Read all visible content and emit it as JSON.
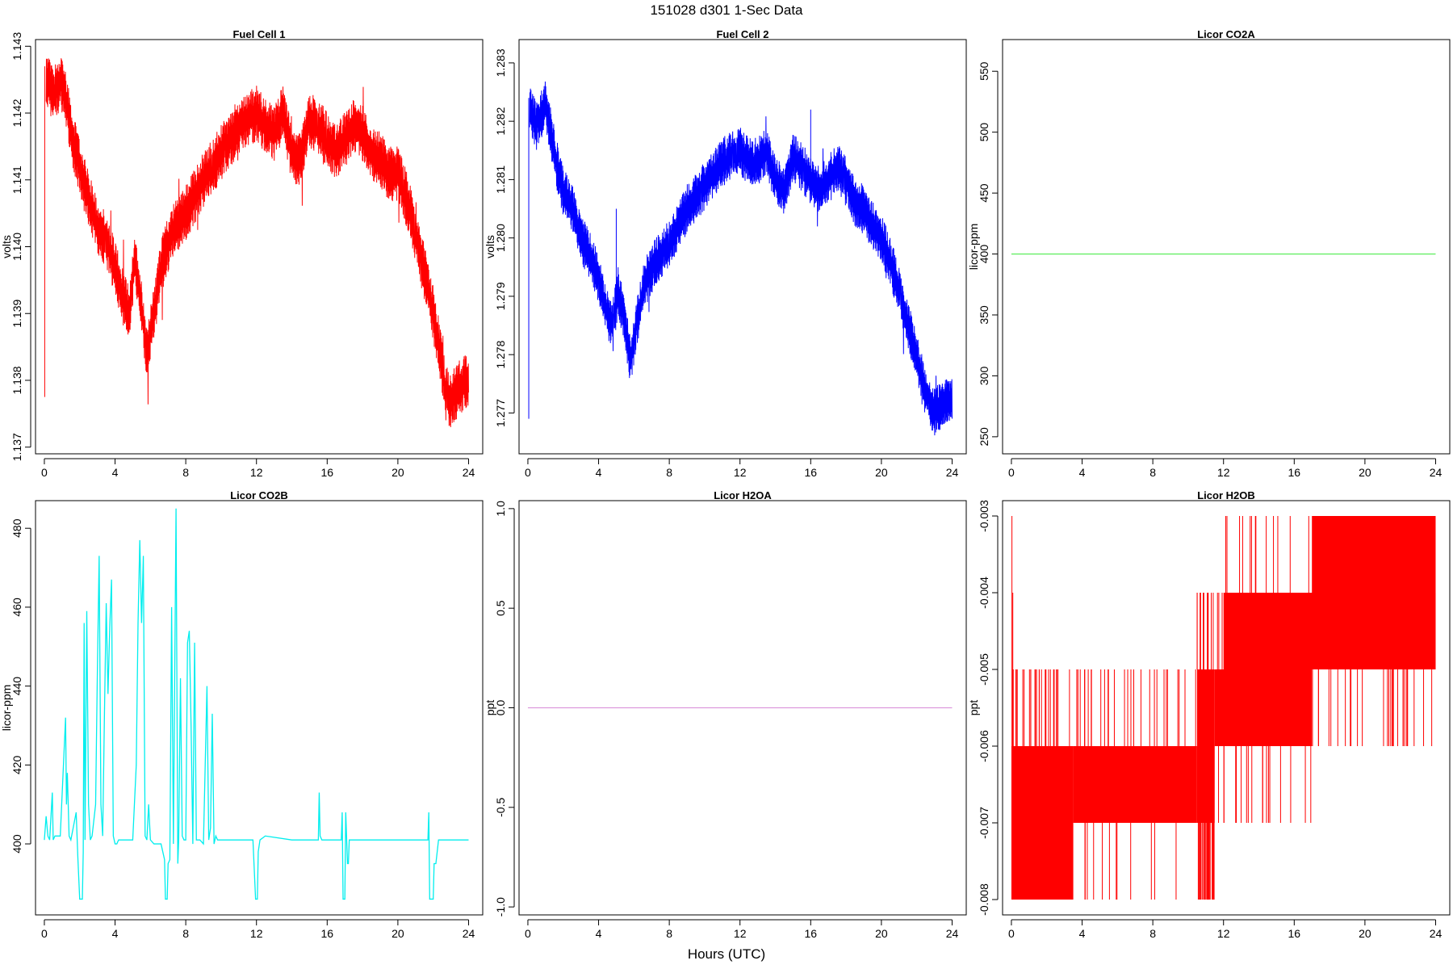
{
  "figure": {
    "title": "151028   d301   1-Sec Data",
    "xlabel": "Hours (UTC)"
  },
  "chart_data": [
    {
      "type": "line",
      "title": "Fuel Cell 1",
      "ylabel": "volts",
      "color": "#ff0000",
      "xlim": [
        -0.5,
        24.8
      ],
      "ylim": [
        1.1369,
        1.1431
      ],
      "xticks": [
        0,
        4,
        8,
        12,
        16,
        20,
        24
      ],
      "yticks": [
        "1.137",
        "1.138",
        "1.139",
        "1.140",
        "1.141",
        "1.142",
        "1.143"
      ],
      "noise": 0.00042,
      "spikes": [
        [
          0.02,
          1.13775,
          1.1427
        ]
      ],
      "x": [
        0.1,
        0.5,
        1.0,
        1.3,
        1.6,
        2.0,
        2.5,
        3.0,
        3.5,
        4.0,
        4.5,
        4.8,
        5.1,
        5.4,
        5.8,
        6.2,
        6.6,
        7.2,
        8.0,
        9.0,
        10.0,
        11.0,
        11.5,
        12.0,
        12.5,
        13.0,
        13.5,
        14.0,
        14.5,
        15.0,
        15.5,
        16.0,
        16.5,
        17.0,
        17.5,
        18.0,
        18.5,
        19.0,
        19.5,
        20.0,
        20.5,
        21.0,
        21.5,
        22.0,
        22.4,
        22.7,
        23.0,
        23.5,
        24.0
      ],
      "values": [
        1.1425,
        1.1423,
        1.1425,
        1.1421,
        1.1416,
        1.1412,
        1.1407,
        1.1403,
        1.1401,
        1.1397,
        1.1392,
        1.139,
        1.1398,
        1.1393,
        1.1384,
        1.139,
        1.1397,
        1.1402,
        1.1405,
        1.141,
        1.1414,
        1.1418,
        1.1419,
        1.142,
        1.1418,
        1.1417,
        1.142,
        1.1414,
        1.1413,
        1.1419,
        1.1418,
        1.1416,
        1.1414,
        1.1416,
        1.1418,
        1.1417,
        1.1414,
        1.1413,
        1.1411,
        1.1411,
        1.1407,
        1.1402,
        1.1396,
        1.139,
        1.1384,
        1.1378,
        1.1377,
        1.1379,
        1.138
      ]
    },
    {
      "type": "line",
      "title": "Fuel Cell 2",
      "ylabel": "volts",
      "color": "#0000ff",
      "xlim": [
        -0.5,
        24.8
      ],
      "ylim": [
        1.2763,
        1.2834
      ],
      "xticks": [
        0,
        4,
        8,
        12,
        16,
        20,
        24
      ],
      "yticks": [
        "1.277",
        "1.278",
        "1.279",
        "1.280",
        "1.281",
        "1.282",
        "1.283"
      ],
      "noise": 0.00042,
      "spikes": [
        [
          0.05,
          1.2769,
          1.2824
        ],
        [
          5.0,
          1.2791,
          1.2805
        ],
        [
          16.0,
          1.2809,
          1.2822
        ]
      ],
      "x": [
        0.1,
        0.5,
        1.0,
        1.3,
        1.6,
        2.0,
        2.5,
        3.0,
        3.5,
        4.0,
        4.5,
        4.8,
        5.1,
        5.4,
        5.8,
        6.2,
        6.6,
        7.2,
        8.0,
        9.0,
        10.0,
        11.0,
        11.5,
        12.0,
        12.5,
        13.0,
        13.5,
        14.0,
        14.5,
        15.0,
        15.5,
        16.0,
        16.5,
        17.0,
        17.5,
        18.0,
        18.5,
        19.0,
        19.5,
        20.0,
        20.5,
        21.0,
        21.5,
        22.0,
        22.4,
        22.7,
        23.0,
        23.5,
        24.0
      ],
      "values": [
        1.2822,
        1.2819,
        1.2823,
        1.2818,
        1.2813,
        1.2808,
        1.2805,
        1.28,
        1.2797,
        1.2793,
        1.2787,
        1.2785,
        1.2791,
        1.2787,
        1.2779,
        1.2786,
        1.2792,
        1.2796,
        1.2799,
        1.2805,
        1.2809,
        1.2813,
        1.2814,
        1.2815,
        1.2813,
        1.2813,
        1.2815,
        1.281,
        1.2808,
        1.2814,
        1.2812,
        1.281,
        1.2808,
        1.281,
        1.2812,
        1.281,
        1.2806,
        1.2805,
        1.2802,
        1.28,
        1.2796,
        1.2791,
        1.2785,
        1.278,
        1.2774,
        1.2772,
        1.277,
        1.2772,
        1.2772
      ]
    },
    {
      "type": "line",
      "title": "Licor CO2A",
      "ylabel": "licor-ppm",
      "color": "#66ee66",
      "xlim": [
        -0.5,
        24.8
      ],
      "ylim": [
        236,
        576
      ],
      "xticks": [
        0,
        4,
        8,
        12,
        16,
        20,
        24
      ],
      "yticks": [
        "250",
        "300",
        "350",
        "400",
        "450",
        "500",
        "550"
      ],
      "noise": 0,
      "x": [
        0,
        24
      ],
      "values": [
        400,
        400
      ]
    },
    {
      "type": "line",
      "title": "Licor CO2B",
      "ylabel": "licor-ppm",
      "color": "#00eeee",
      "xlim": [
        -0.5,
        24.8
      ],
      "ylim": [
        382,
        487
      ],
      "xticks": [
        0,
        4,
        8,
        12,
        16,
        20,
        24
      ],
      "yticks": [
        "400",
        "420",
        "440",
        "460",
        "480"
      ],
      "noise": 0,
      "x": [
        0.0,
        0.1,
        0.2,
        0.3,
        0.45,
        0.5,
        0.6,
        0.9,
        1.2,
        1.25,
        1.3,
        1.4,
        1.5,
        1.8,
        1.9,
        2.0,
        2.05,
        2.15,
        2.2,
        2.25,
        2.3,
        2.4,
        2.5,
        2.6,
        2.7,
        2.9,
        3.0,
        3.1,
        3.2,
        3.3,
        3.4,
        3.5,
        3.6,
        3.7,
        3.8,
        3.9,
        4.0,
        4.1,
        4.2,
        4.4,
        5.0,
        5.2,
        5.3,
        5.4,
        5.5,
        5.6,
        5.7,
        5.8,
        5.9,
        6.0,
        6.2,
        6.6,
        6.8,
        6.85,
        6.95,
        7.0,
        7.1,
        7.2,
        7.3,
        7.45,
        7.55,
        7.6,
        7.7,
        7.8,
        7.9,
        8.0,
        8.1,
        8.2,
        8.3,
        8.4,
        8.5,
        8.6,
        8.7,
        8.8,
        9.0,
        9.2,
        9.3,
        9.4,
        9.5,
        9.6,
        9.7,
        9.8,
        10.0,
        11.8,
        11.85,
        11.95,
        12.05,
        12.1,
        12.2,
        12.5,
        14.0,
        15.5,
        15.55,
        15.6,
        15.7,
        16.8,
        16.85,
        16.9,
        17.0,
        17.05,
        17.15,
        17.2,
        17.25,
        21.7,
        21.75,
        21.8,
        22.0,
        22.05,
        22.15,
        22.3,
        23.0,
        24.0
      ],
      "values": [
        401,
        407,
        402,
        401,
        413,
        401,
        402,
        402,
        432,
        410,
        418,
        402,
        401,
        408,
        396,
        386,
        386,
        386,
        398,
        456,
        401,
        459,
        410,
        401,
        402,
        410,
        444,
        473,
        410,
        402,
        433,
        461,
        438,
        455,
        467,
        402,
        400,
        400,
        401,
        401,
        401,
        420,
        456,
        477,
        456,
        473,
        402,
        401,
        410,
        401,
        400,
        400,
        396,
        386,
        386,
        395,
        396,
        460,
        400,
        485,
        395,
        401,
        442,
        402,
        401,
        401,
        451,
        454,
        430,
        400,
        451,
        401,
        401,
        401,
        400,
        440,
        401,
        404,
        433,
        400,
        402,
        401,
        401,
        401,
        396,
        386,
        386,
        398,
        401,
        402,
        401,
        401,
        413,
        402,
        401,
        401,
        408,
        386,
        386,
        408,
        395,
        395,
        401,
        401,
        408,
        386,
        386,
        395,
        395,
        401,
        401,
        401
      ]
    },
    {
      "type": "line",
      "title": "Licor H2OA",
      "ylabel": "ppt",
      "color": "#dd99dd",
      "xlim": [
        -0.5,
        24.8
      ],
      "ylim": [
        -1.04,
        1.04
      ],
      "xticks": [
        0,
        4,
        8,
        12,
        16,
        20,
        24
      ],
      "yticks": [
        "-1.0",
        "-0.5",
        "0.0",
        "0.5",
        "1.0"
      ],
      "noise": 0,
      "x": [
        0,
        24
      ],
      "values": [
        0,
        0
      ]
    },
    {
      "type": "line",
      "title": "Licor H2OB",
      "ylabel": "ppt",
      "color": "#ff0000",
      "xlim": [
        -0.5,
        24.8
      ],
      "ylim": [
        -0.0082,
        -0.0028
      ],
      "xticks": [
        0,
        4,
        8,
        12,
        16,
        20,
        24
      ],
      "yticks": [
        "-0.008",
        "-0.007",
        "-0.006",
        "-0.005",
        "-0.004",
        "-0.003"
      ],
      "noise": 0,
      "bands": [
        {
          "x": [
            0,
            3.5
          ],
          "y": [
            -0.008,
            -0.006
          ]
        },
        {
          "x": [
            3.5,
            10.5
          ],
          "y": [
            -0.007,
            -0.006
          ]
        },
        {
          "x": [
            10.5,
            11.5
          ],
          "y": [
            -0.007,
            -0.005
          ]
        },
        {
          "x": [
            11.5,
            17.0
          ],
          "y": [
            -0.006,
            -0.005
          ]
        },
        {
          "x": [
            12.0,
            24.0
          ],
          "y": [
            -0.005,
            -0.004
          ]
        },
        {
          "x": [
            17.0,
            24.0
          ],
          "y": [
            -0.005,
            -0.003
          ]
        }
      ],
      "spikes": [
        [
          0.03,
          -0.008,
          -0.003
        ],
        [
          0.08,
          -0.008,
          -0.004
        ]
      ],
      "x": [
        0,
        24
      ],
      "values": [
        -0.006,
        -0.004
      ]
    }
  ]
}
